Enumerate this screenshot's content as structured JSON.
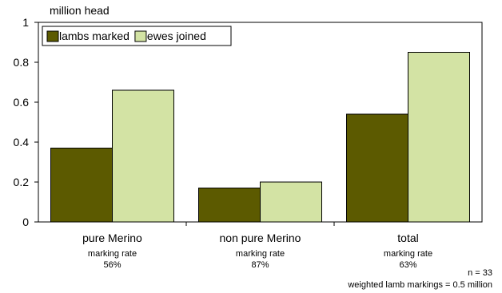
{
  "chart_data": {
    "type": "bar",
    "unit_label": "million head",
    "categories": [
      "pure Merino",
      "non pure Merino",
      "total"
    ],
    "marking_rate_label": "marking rate",
    "marking_rates": [
      "56%",
      "87%",
      "63%"
    ],
    "series": [
      {
        "name": "lambs marked",
        "values": [
          0.37,
          0.17,
          0.54
        ],
        "color": "#5c5a00"
      },
      {
        "name": "ewes joined",
        "values": [
          0.66,
          0.2,
          0.85
        ],
        "color": "#d3e3a4"
      }
    ],
    "ylim": [
      0,
      1
    ],
    "yticks": [
      0,
      0.2,
      0.4,
      0.6,
      0.8,
      1
    ],
    "ytick_labels": [
      "0",
      "0.2",
      "0.4",
      "0.6",
      "0.8",
      "1"
    ],
    "legend_position": "top-left",
    "grid": false
  },
  "notes": {
    "n": "n = 33",
    "weighted": "weighted lamb markings = 0.5 million"
  }
}
